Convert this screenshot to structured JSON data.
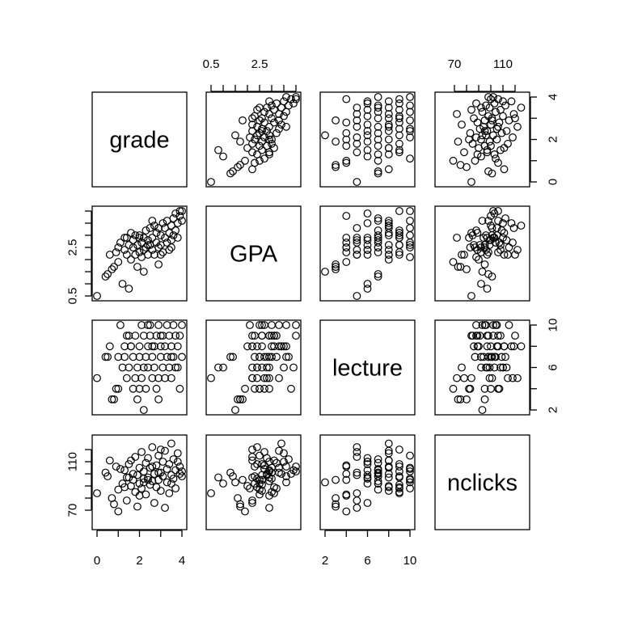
{
  "chart_data": {
    "type": "scatter",
    "variables": [
      "grade",
      "GPA",
      "lecture",
      "nclicks"
    ],
    "ranges": {
      "grade": [
        0,
        4
      ],
      "GPA": [
        0.5,
        4.0
      ],
      "lecture": [
        2,
        10
      ],
      "nclicks": [
        58,
        128
      ]
    },
    "ticks": {
      "grade": [
        0,
        1,
        2,
        3,
        4
      ],
      "GPA": [
        0.5,
        1.0,
        1.5,
        2.0,
        2.5,
        3.0,
        3.5,
        4.0
      ],
      "lecture": [
        2,
        4,
        6,
        8,
        10
      ],
      "nclicks": [
        70,
        80,
        90,
        100,
        110,
        120
      ]
    },
    "tick_labels": {
      "grade": [
        {
          "value": 0,
          "label": "0"
        },
        {
          "value": 2,
          "label": "2"
        },
        {
          "value": 4,
          "label": "4"
        }
      ],
      "GPA": [
        {
          "value": 0.5,
          "label": "0.5"
        },
        {
          "value": 2.5,
          "label": "2.5"
        }
      ],
      "lecture": [
        {
          "value": 2,
          "label": "2"
        },
        {
          "value": 6,
          "label": "6"
        },
        {
          "value": 10,
          "label": "10"
        }
      ],
      "nclicks": [
        {
          "value": 70,
          "label": "70"
        },
        {
          "value": 110,
          "label": "110"
        }
      ]
    },
    "grid": false,
    "records": [
      {
        "grade": 0.0,
        "GPA": 0.5,
        "lecture": 5,
        "nclicks": 84
      },
      {
        "grade": 0.4,
        "GPA": 1.3,
        "lecture": 7,
        "nclicks": 101
      },
      {
        "grade": 0.5,
        "GPA": 1.4,
        "lecture": 7,
        "nclicks": 98
      },
      {
        "grade": 0.7,
        "GPA": 1.6,
        "lecture": 3,
        "nclicks": 80
      },
      {
        "grade": 0.8,
        "GPA": 1.7,
        "lecture": 3,
        "nclicks": 75
      },
      {
        "grade": 0.9,
        "GPA": 2.3,
        "lecture": 4,
        "nclicks": 106
      },
      {
        "grade": 1.0,
        "GPA": 1.9,
        "lecture": 4,
        "nclicks": 69
      },
      {
        "grade": 1.1,
        "GPA": 2.7,
        "lecture": 10,
        "nclicks": 104
      },
      {
        "grade": 1.2,
        "GPA": 1.0,
        "lecture": 6,
        "nclicks": 92
      },
      {
        "grade": 1.3,
        "GPA": 2.4,
        "lecture": 8,
        "nclicks": 89
      },
      {
        "grade": 1.3,
        "GPA": 2.9,
        "lecture": 7,
        "nclicks": 103
      },
      {
        "grade": 1.4,
        "GPA": 2.2,
        "lecture": 5,
        "nclicks": 78
      },
      {
        "grade": 1.5,
        "GPA": 0.8,
        "lecture": 6,
        "nclicks": 97
      },
      {
        "grade": 1.5,
        "GPA": 2.6,
        "lecture": 9,
        "nclicks": 108
      },
      {
        "grade": 1.6,
        "GPA": 3.1,
        "lecture": 8,
        "nclicks": 111
      },
      {
        "grade": 1.7,
        "GPA": 2.5,
        "lecture": 4,
        "nclicks": 95
      },
      {
        "grade": 1.7,
        "GPA": 2.8,
        "lecture": 7,
        "nclicks": 100
      },
      {
        "grade": 1.8,
        "GPA": 3.0,
        "lecture": 9,
        "nclicks": 85
      },
      {
        "grade": 1.8,
        "GPA": 2.2,
        "lecture": 5,
        "nclicks": 114
      },
      {
        "grade": 1.9,
        "GPA": 2.6,
        "lecture": 6,
        "nclicks": 99
      },
      {
        "grade": 2.0,
        "GPA": 2.3,
        "lecture": 7,
        "nclicks": 92
      },
      {
        "grade": 2.0,
        "GPA": 3.0,
        "lecture": 8,
        "nclicks": 105
      },
      {
        "grade": 2.1,
        "GPA": 2.1,
        "lecture": 10,
        "nclicks": 88
      },
      {
        "grade": 2.1,
        "GPA": 2.7,
        "lecture": 5,
        "nclicks": 118
      },
      {
        "grade": 2.2,
        "GPA": 2.4,
        "lecture": 6,
        "nclicks": 96
      },
      {
        "grade": 2.2,
        "GPA": 2.9,
        "lecture": 9,
        "nclicks": 102
      },
      {
        "grade": 2.3,
        "GPA": 2.5,
        "lecture": 4,
        "nclicks": 83
      },
      {
        "grade": 2.3,
        "GPA": 3.2,
        "lecture": 7,
        "nclicks": 109
      },
      {
        "grade": 2.4,
        "GPA": 2.2,
        "lecture": 8,
        "nclicks": 97
      },
      {
        "grade": 2.4,
        "GPA": 2.8,
        "lecture": 6,
        "nclicks": 113
      },
      {
        "grade": 2.5,
        "GPA": 2.6,
        "lecture": 9,
        "nclicks": 91
      },
      {
        "grade": 2.5,
        "GPA": 3.3,
        "lecture": 10,
        "nclicks": 105
      },
      {
        "grade": 2.6,
        "GPA": 2.4,
        "lecture": 5,
        "nclicks": 122
      },
      {
        "grade": 2.6,
        "GPA": 2.9,
        "lecture": 7,
        "nclicks": 94
      },
      {
        "grade": 2.7,
        "GPA": 3.4,
        "lecture": 8,
        "nclicks": 100
      },
      {
        "grade": 2.7,
        "GPA": 2.2,
        "lecture": 6,
        "nclicks": 76
      },
      {
        "grade": 2.8,
        "GPA": 2.7,
        "lecture": 4,
        "nclicks": 107
      },
      {
        "grade": 2.8,
        "GPA": 3.1,
        "lecture": 9,
        "nclicks": 89
      },
      {
        "grade": 2.9,
        "GPA": 1.8,
        "lecture": 3,
        "nclicks": 95
      },
      {
        "grade": 2.9,
        "GPA": 2.5,
        "lecture": 10,
        "nclicks": 115
      },
      {
        "grade": 3.0,
        "GPA": 3.0,
        "lecture": 7,
        "nclicks": 101
      },
      {
        "grade": 3.0,
        "GPA": 2.6,
        "lecture": 8,
        "nclicks": 86
      },
      {
        "grade": 3.1,
        "GPA": 3.5,
        "lecture": 6,
        "nclicks": 110
      },
      {
        "grade": 3.1,
        "GPA": 2.3,
        "lecture": 9,
        "nclicks": 98
      },
      {
        "grade": 3.2,
        "GPA": 2.9,
        "lecture": 5,
        "nclicks": 72
      },
      {
        "grade": 3.2,
        "GPA": 3.3,
        "lecture": 8,
        "nclicks": 119
      },
      {
        "grade": 3.3,
        "GPA": 2.7,
        "lecture": 7,
        "nclicks": 104
      },
      {
        "grade": 3.3,
        "GPA": 3.6,
        "lecture": 10,
        "nclicks": 93
      },
      {
        "grade": 3.4,
        "GPA": 2.4,
        "lecture": 6,
        "nclicks": 108
      },
      {
        "grade": 3.4,
        "GPA": 3.1,
        "lecture": 9,
        "nclicks": 84
      },
      {
        "grade": 3.5,
        "GPA": 3.4,
        "lecture": 8,
        "nclicks": 125
      },
      {
        "grade": 3.5,
        "GPA": 2.8,
        "lecture": 5,
        "nclicks": 99
      },
      {
        "grade": 3.6,
        "GPA": 3.7,
        "lecture": 7,
        "nclicks": 112
      },
      {
        "grade": 3.6,
        "GPA": 3.0,
        "lecture": 10,
        "nclicks": 96
      },
      {
        "grade": 3.7,
        "GPA": 3.9,
        "lecture": 6,
        "nclicks": 103
      },
      {
        "grade": 3.7,
        "GPA": 3.2,
        "lecture": 9,
        "nclicks": 88
      },
      {
        "grade": 3.8,
        "GPA": 3.5,
        "lecture": 8,
        "nclicks": 117
      },
      {
        "grade": 3.9,
        "GPA": 3.8,
        "lecture": 4,
        "nclicks": 100
      },
      {
        "grade": 3.9,
        "GPA": 4.0,
        "lecture": 9,
        "nclicks": 106
      },
      {
        "grade": 4.0,
        "GPA": 3.6,
        "lecture": 7,
        "nclicks": 98
      },
      {
        "grade": 4.0,
        "GPA": 4.0,
        "lecture": 10,
        "nclicks": 102
      },
      {
        "grade": 2.0,
        "GPA": 2.9,
        "lecture": 4,
        "nclicks": 82
      },
      {
        "grade": 1.6,
        "GPA": 2.0,
        "lecture": 8,
        "nclicks": 90
      },
      {
        "grade": 2.4,
        "GPA": 2.6,
        "lecture": 10,
        "nclicks": 95
      },
      {
        "grade": 1.0,
        "GPA": 2.5,
        "lecture": 7,
        "nclicks": 87
      },
      {
        "grade": 3.0,
        "GPA": 2.2,
        "lecture": 9,
        "nclicks": 120
      },
      {
        "grade": 2.6,
        "GPA": 3.6,
        "lecture": 8,
        "nclicks": 106
      },
      {
        "grade": 1.9,
        "GPA": 1.7,
        "lecture": 3,
        "nclicks": 73
      },
      {
        "grade": 2.2,
        "GPA": 1.5,
        "lecture": 2,
        "nclicks": 93
      },
      {
        "grade": 3.8,
        "GPA": 2.9,
        "lecture": 6,
        "nclicks": 110
      },
      {
        "grade": 0.6,
        "GPA": 2.2,
        "lecture": 8,
        "nclicks": 111
      },
      {
        "grade": 1.4,
        "GPA": 2.9,
        "lecture": 9,
        "nclicks": 97
      },
      {
        "grade": 2.9,
        "GPA": 3.3,
        "lecture": 5,
        "nclicks": 101
      },
      {
        "grade": 3.5,
        "GPA": 2.5,
        "lecture": 7,
        "nclicks": 92
      }
    ]
  }
}
